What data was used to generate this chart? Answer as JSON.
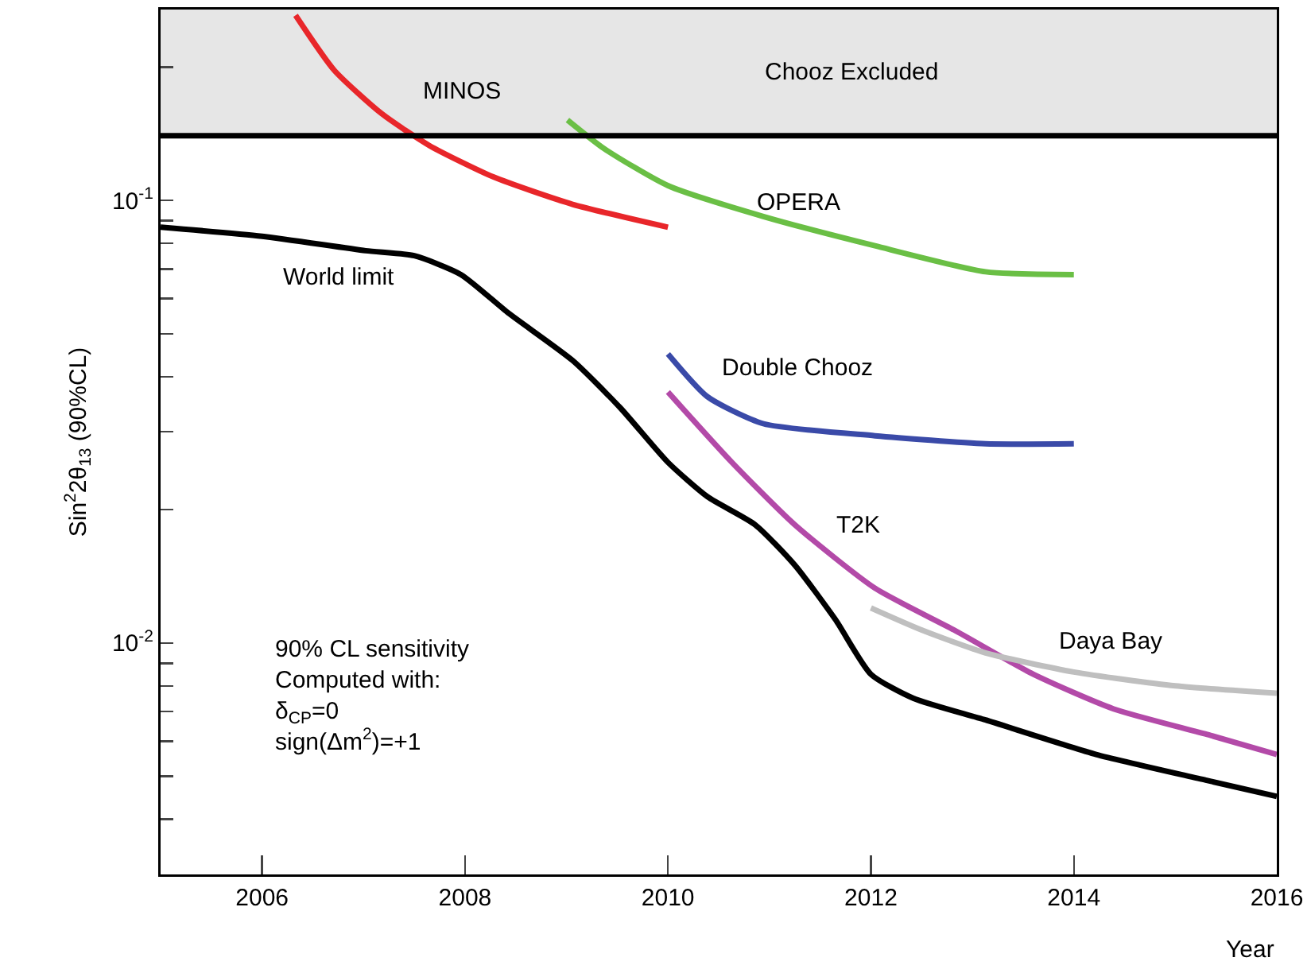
{
  "chart_data": {
    "type": "line",
    "xlabel": "Year",
    "ylabel": "Sin$^{2}$2θ$_{13}$ (90%CL)",
    "xlim": [
      2005,
      2016
    ],
    "xticks": [
      2006,
      2008,
      2010,
      2012,
      2014,
      2016
    ],
    "ylim": [
      0.003,
      0.27
    ],
    "log": "y",
    "yticks": [
      {
        "value": 0.004,
        "label": null
      },
      {
        "value": 0.005,
        "label": null
      },
      {
        "value": 0.006,
        "label": null
      },
      {
        "value": 0.007,
        "label": null
      },
      {
        "value": 0.008,
        "label": null
      },
      {
        "value": 0.009,
        "label": null
      },
      {
        "value": 0.01,
        "label": "10$^{-2}$"
      },
      {
        "value": 0.02,
        "label": null
      },
      {
        "value": 0.03,
        "label": null
      },
      {
        "value": 0.04,
        "label": null
      },
      {
        "value": 0.05,
        "label": null
      },
      {
        "value": 0.06,
        "label": null
      },
      {
        "value": 0.07,
        "label": null
      },
      {
        "value": 0.08,
        "label": null
      },
      {
        "value": 0.09,
        "label": null
      },
      {
        "value": 0.1,
        "label": "10$^{-1}$"
      },
      {
        "value": 0.2,
        "label": null
      }
    ],
    "grid": false,
    "legend": false,
    "line_style": "solid",
    "marker": "none",
    "bands": [
      {
        "axis": "y",
        "from": 0.14,
        "to": 0.27,
        "label": "Chooz Excluded",
        "color": "#e6e6e6"
      }
    ],
    "ref_lines": [
      {
        "axis": "y",
        "value": 0.14,
        "color": "#000000"
      }
    ],
    "annotations": [
      "90% CL sensitivity\nComputed with:\nδ$_{CP}$=0\nsign(Δm$^{2}$)=+1"
    ],
    "series": [
      {
        "name": "World limit",
        "color": "#000000",
        "x": [
          2005,
          2006,
          2007.02,
          2007.5,
          2007.96,
          2008.43,
          2009.06,
          2009.53,
          2010,
          2010.39,
          2010.86,
          2011.25,
          2011.65,
          2012,
          2012.42,
          2013.13,
          2014.22,
          2015.3,
          2016
        ],
        "values": [
          0.087,
          0.083,
          0.077,
          0.075,
          0.068,
          0.0556,
          0.0435,
          0.034,
          0.0256,
          0.0214,
          0.0185,
          0.015,
          0.0113,
          0.0085,
          0.0075,
          0.0067,
          0.0056,
          0.0049,
          0.0045
        ]
      },
      {
        "name": "MINOS",
        "color": "#e8262a",
        "x": [
          2006.33,
          2006.71,
          2007.18,
          2007.65,
          2008.28,
          2009.06,
          2010
        ],
        "values": [
          0.262,
          0.197,
          0.157,
          0.133,
          0.113,
          0.098,
          0.087
        ]
      },
      {
        "name": "OPERA",
        "color": "#6abf45",
        "x": [
          2009.01,
          2009.37,
          2010,
          2010.94,
          2012.04,
          2013.13,
          2014
        ],
        "values": [
          0.152,
          0.131,
          0.108,
          0.092,
          0.079,
          0.069,
          0.068
        ]
      },
      {
        "name": "Double Chooz",
        "color": "#3a4aa8",
        "x": [
          2010,
          2010.39,
          2010.94,
          2012.04,
          2013.13,
          2014
        ],
        "values": [
          0.045,
          0.036,
          0.0313,
          0.0294,
          0.0282,
          0.0282
        ]
      },
      {
        "name": "T2K",
        "color": "#b34aa8",
        "x": [
          2010,
          2010.63,
          2011.25,
          2012.04,
          2012.82,
          2013.6,
          2014.39,
          2015.33,
          2016
        ],
        "values": [
          0.0369,
          0.0256,
          0.0185,
          0.0133,
          0.0107,
          0.0085,
          0.0071,
          0.0062,
          0.0056
        ]
      },
      {
        "name": "Daya Bay",
        "color": "#bfbfbf",
        "x": [
          2012,
          2012.5,
          2013.13,
          2014,
          2015,
          2016
        ],
        "values": [
          0.012,
          0.0107,
          0.0095,
          0.0086,
          0.008,
          0.0077
        ]
      }
    ]
  }
}
